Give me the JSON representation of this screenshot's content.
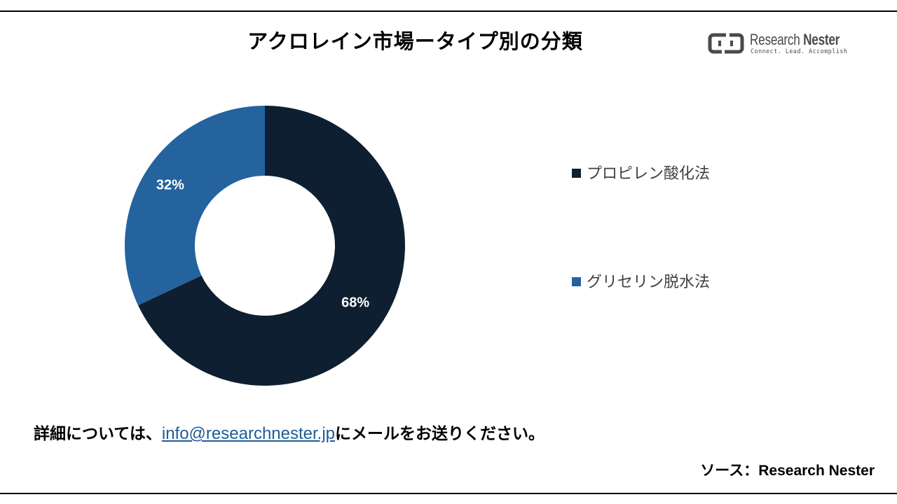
{
  "title": "アクロレイン市場ータイプ別の分類",
  "logo": {
    "name_light": "Research ",
    "name_bold": "Nester",
    "tagline": "Connect. Lead. Accomplish"
  },
  "chart_data": {
    "type": "pie",
    "donut": true,
    "title": "アクロレイン市場ータイプ別の分類",
    "categories": [
      "プロピレン酸化法",
      "グリセリン脱水法"
    ],
    "values": [
      68,
      32
    ],
    "labels": [
      "68%",
      "32%"
    ],
    "colors": [
      "#0d1f30",
      "#24639e"
    ],
    "legend_position": "right"
  },
  "footer": {
    "contact_prefix": "詳細については、",
    "email": "info@researchnester.jp",
    "contact_suffix": "にメールをお送りください。",
    "source_label": "ソース：",
    "source_name": "Research Nester"
  }
}
